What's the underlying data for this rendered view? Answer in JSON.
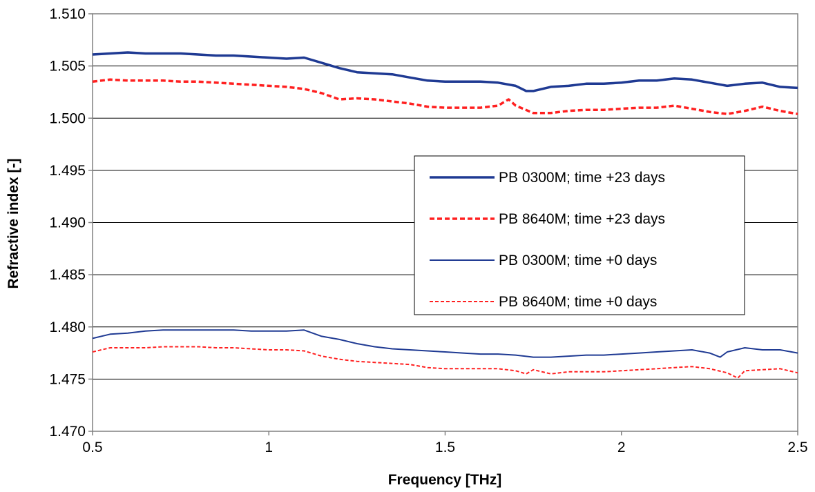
{
  "chart_data": {
    "type": "line",
    "title": "",
    "xlabel": "Frequency [THz]",
    "ylabel": "Refractive index [-]",
    "xlim": [
      0.5,
      2.5
    ],
    "ylim": [
      1.47,
      1.51
    ],
    "xticks": [
      0.5,
      1,
      1.5,
      2,
      2.5
    ],
    "xtick_labels": [
      "0.5",
      "1",
      "1.5",
      "2",
      "2.5"
    ],
    "yticks": [
      1.47,
      1.475,
      1.48,
      1.485,
      1.49,
      1.495,
      1.5,
      1.505,
      1.51
    ],
    "ytick_labels": [
      "1.470",
      "1.475",
      "1.480",
      "1.485",
      "1.490",
      "1.495",
      "1.500",
      "1.505",
      "1.510"
    ],
    "grid": "horizontal major gridlines",
    "legend_position": "center-right",
    "series": [
      {
        "name": "PB 0300M; time +23 days",
        "color": "#1f3a93",
        "style": "solid-thick",
        "x": [
          0.5,
          0.55,
          0.6,
          0.65,
          0.7,
          0.75,
          0.8,
          0.85,
          0.9,
          0.95,
          1.0,
          1.05,
          1.1,
          1.15,
          1.2,
          1.25,
          1.3,
          1.35,
          1.4,
          1.45,
          1.5,
          1.55,
          1.6,
          1.65,
          1.7,
          1.73,
          1.75,
          1.8,
          1.85,
          1.9,
          1.95,
          2.0,
          2.05,
          2.1,
          2.15,
          2.2,
          2.25,
          2.3,
          2.35,
          2.4,
          2.45,
          2.5
        ],
        "y": [
          1.5061,
          1.5062,
          1.5063,
          1.5062,
          1.5062,
          1.5062,
          1.5061,
          1.506,
          1.506,
          1.5059,
          1.5058,
          1.5057,
          1.5058,
          1.5053,
          1.5048,
          1.5044,
          1.5043,
          1.5042,
          1.5039,
          1.5036,
          1.5035,
          1.5035,
          1.5035,
          1.5034,
          1.5031,
          1.5026,
          1.5026,
          1.503,
          1.5031,
          1.5033,
          1.5033,
          1.5034,
          1.5036,
          1.5036,
          1.5038,
          1.5037,
          1.5034,
          1.5031,
          1.5033,
          1.5034,
          1.503,
          1.5029
        ]
      },
      {
        "name": "PB 8640M; time +23 days",
        "color": "#ff2020",
        "style": "dashed-thick",
        "x": [
          0.5,
          0.55,
          0.6,
          0.65,
          0.7,
          0.75,
          0.8,
          0.85,
          0.9,
          0.95,
          1.0,
          1.05,
          1.1,
          1.15,
          1.2,
          1.25,
          1.3,
          1.35,
          1.4,
          1.45,
          1.5,
          1.55,
          1.6,
          1.65,
          1.68,
          1.7,
          1.75,
          1.8,
          1.85,
          1.9,
          1.95,
          2.0,
          2.05,
          2.1,
          2.15,
          2.2,
          2.25,
          2.3,
          2.35,
          2.4,
          2.45,
          2.5
        ],
        "y": [
          1.5035,
          1.5037,
          1.5036,
          1.5036,
          1.5036,
          1.5035,
          1.5035,
          1.5034,
          1.5033,
          1.5032,
          1.5031,
          1.503,
          1.5028,
          1.5024,
          1.5018,
          1.5019,
          1.5018,
          1.5016,
          1.5014,
          1.5011,
          1.501,
          1.501,
          1.501,
          1.5012,
          1.5018,
          1.5012,
          1.5005,
          1.5005,
          1.5007,
          1.5008,
          1.5008,
          1.5009,
          1.501,
          1.501,
          1.5012,
          1.5009,
          1.5006,
          1.5004,
          1.5007,
          1.5011,
          1.5007,
          1.5004
        ]
      },
      {
        "name": "PB 0300M; time +0 days",
        "color": "#1f3a93",
        "style": "solid-thin",
        "x": [
          0.5,
          0.55,
          0.6,
          0.65,
          0.7,
          0.75,
          0.8,
          0.85,
          0.9,
          0.95,
          1.0,
          1.05,
          1.1,
          1.15,
          1.2,
          1.25,
          1.3,
          1.35,
          1.4,
          1.45,
          1.5,
          1.55,
          1.6,
          1.65,
          1.7,
          1.75,
          1.8,
          1.85,
          1.9,
          1.95,
          2.0,
          2.05,
          2.1,
          2.15,
          2.2,
          2.25,
          2.28,
          2.3,
          2.35,
          2.4,
          2.45,
          2.5
        ],
        "y": [
          1.4789,
          1.4793,
          1.4794,
          1.4796,
          1.4797,
          1.4797,
          1.4797,
          1.4797,
          1.4797,
          1.4796,
          1.4796,
          1.4796,
          1.4797,
          1.4791,
          1.4788,
          1.4784,
          1.4781,
          1.4779,
          1.4778,
          1.4777,
          1.4776,
          1.4775,
          1.4774,
          1.4774,
          1.4773,
          1.4771,
          1.4771,
          1.4772,
          1.4773,
          1.4773,
          1.4774,
          1.4775,
          1.4776,
          1.4777,
          1.4778,
          1.4775,
          1.4771,
          1.4776,
          1.478,
          1.4778,
          1.4778,
          1.4775
        ]
      },
      {
        "name": "PB 8640M; time +0 days",
        "color": "#ff2020",
        "style": "dashed-thin",
        "x": [
          0.5,
          0.55,
          0.6,
          0.65,
          0.7,
          0.75,
          0.8,
          0.85,
          0.9,
          0.95,
          1.0,
          1.05,
          1.1,
          1.15,
          1.2,
          1.25,
          1.3,
          1.35,
          1.4,
          1.45,
          1.5,
          1.55,
          1.6,
          1.65,
          1.7,
          1.73,
          1.75,
          1.8,
          1.85,
          1.9,
          1.95,
          2.0,
          2.05,
          2.1,
          2.15,
          2.2,
          2.25,
          2.3,
          2.33,
          2.35,
          2.4,
          2.45,
          2.5
        ],
        "y": [
          1.4776,
          1.478,
          1.478,
          1.478,
          1.4781,
          1.4781,
          1.4781,
          1.478,
          1.478,
          1.4779,
          1.4778,
          1.4778,
          1.4777,
          1.4772,
          1.4769,
          1.4767,
          1.4766,
          1.4765,
          1.4764,
          1.4761,
          1.476,
          1.476,
          1.476,
          1.476,
          1.4758,
          1.4755,
          1.4759,
          1.4755,
          1.4757,
          1.4757,
          1.4757,
          1.4758,
          1.4759,
          1.476,
          1.4761,
          1.4762,
          1.476,
          1.4756,
          1.4751,
          1.4758,
          1.4759,
          1.476,
          1.4756
        ]
      }
    ]
  }
}
